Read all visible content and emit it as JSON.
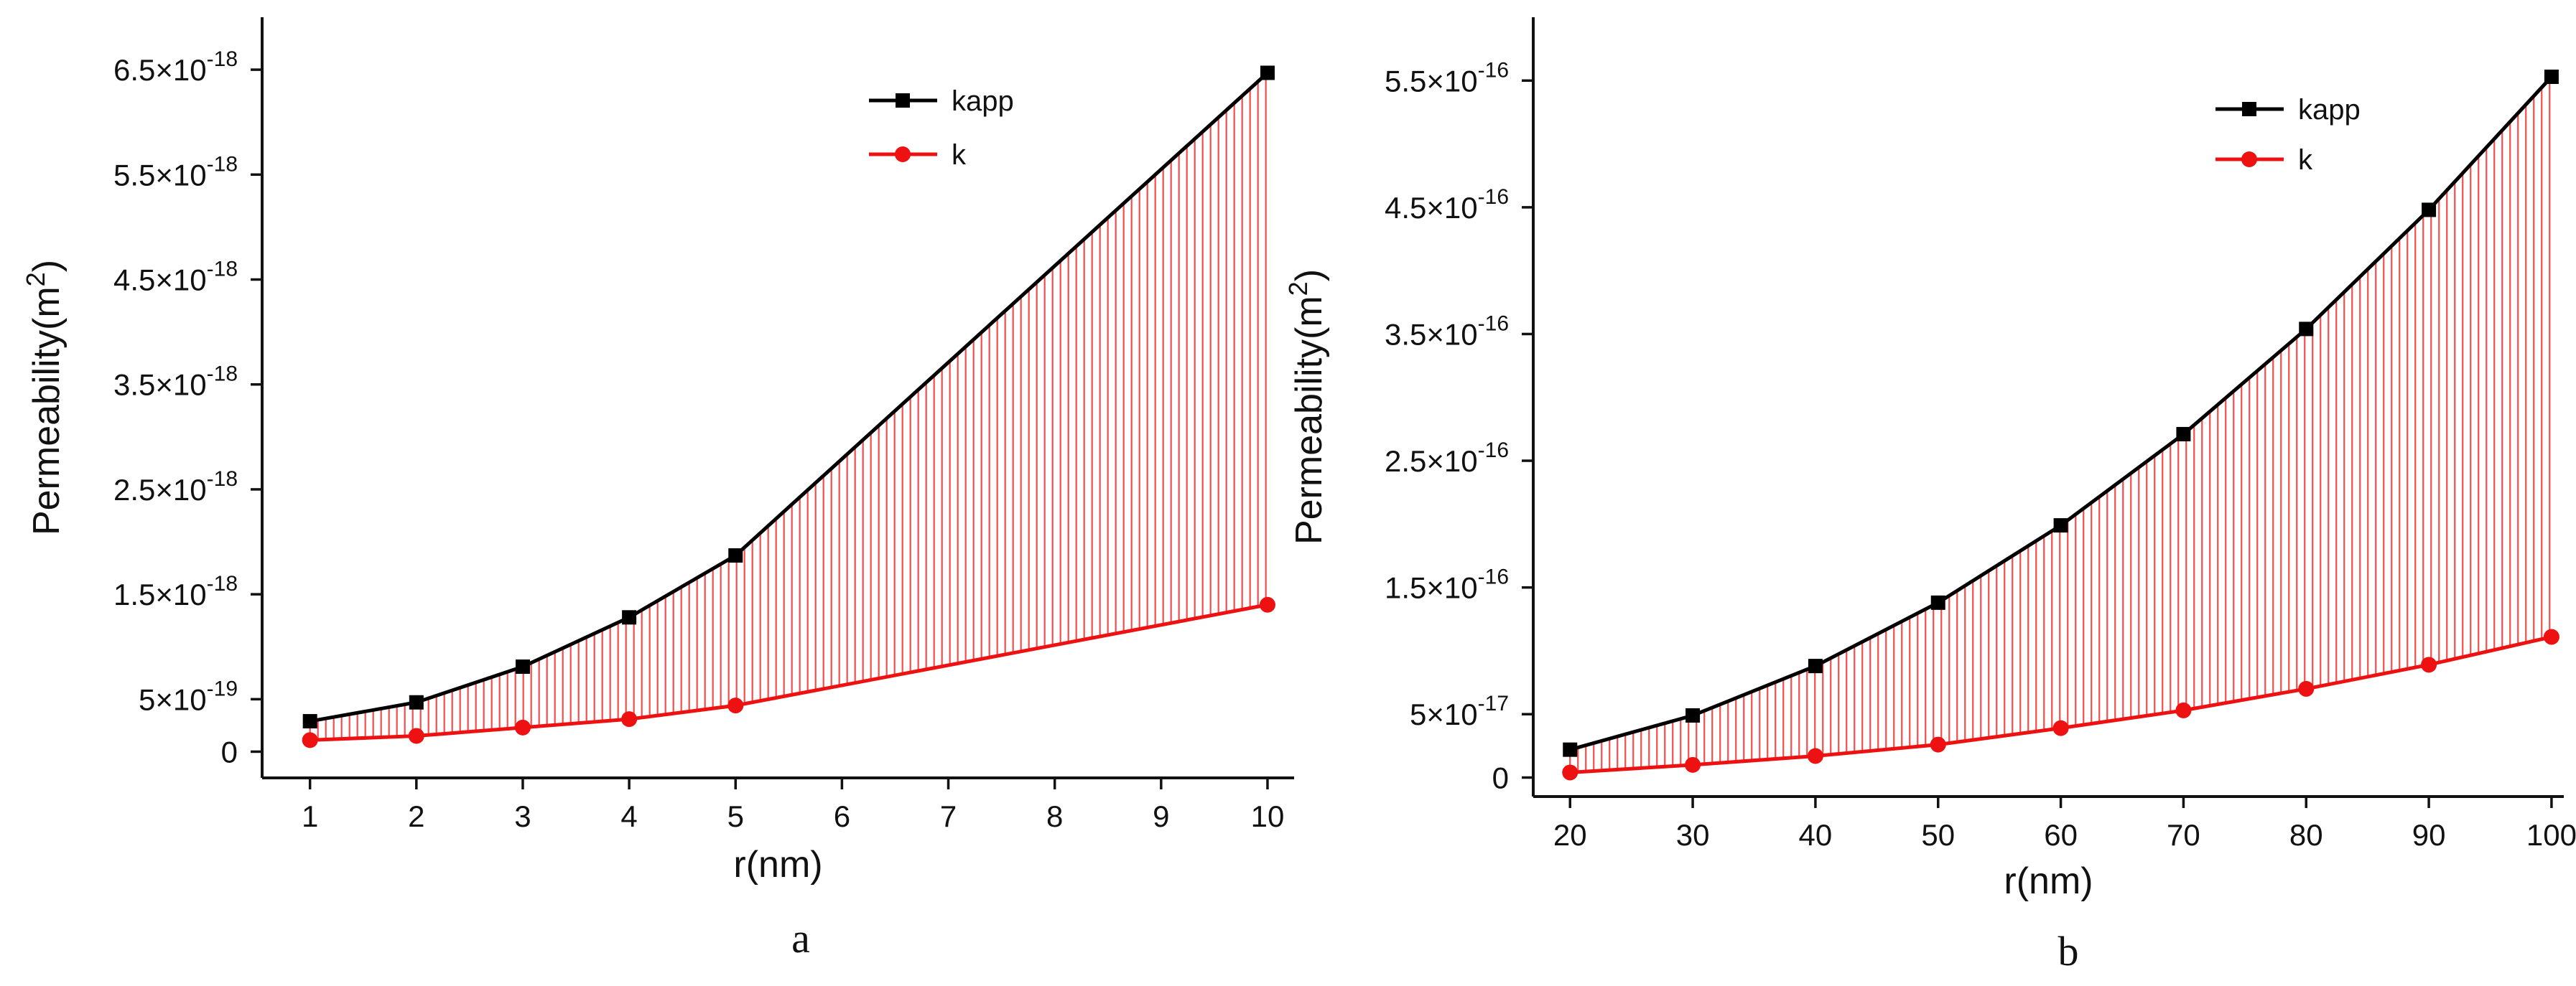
{
  "chart_data": [
    {
      "type": "line",
      "panel_label": "a",
      "xlabel": "r(nm)",
      "ylabel": "Permeability(m",
      "ylabel_sup": "2",
      "ylabel_close": ")",
      "x_positions": [
        1,
        2,
        3,
        4,
        5,
        6,
        7,
        8,
        9,
        10
      ],
      "x_tick_labels": [
        "1",
        "2",
        "3",
        "4",
        "5",
        "6",
        "7",
        "8",
        "9",
        "10"
      ],
      "xlim": [
        0.55,
        10.25
      ],
      "ylim": [
        -2.5e-19,
        7e-18
      ],
      "y_ticks": [
        {
          "value": 0,
          "mantissa": "0",
          "exp": ""
        },
        {
          "value": 5e-19,
          "mantissa": "5×10",
          "exp": "-19"
        },
        {
          "value": 1.5e-18,
          "mantissa": "1.5×10",
          "exp": "-18"
        },
        {
          "value": 2.5e-18,
          "mantissa": "2.5×10",
          "exp": "-18"
        },
        {
          "value": 3.5e-18,
          "mantissa": "3.5×10",
          "exp": "-18"
        },
        {
          "value": 4.5e-18,
          "mantissa": "4.5×10",
          "exp": "-18"
        },
        {
          "value": 5.5e-18,
          "mantissa": "5.5×10",
          "exp": "-18"
        },
        {
          "value": 6.5e-18,
          "mantissa": "6.5×10",
          "exp": "-18"
        }
      ],
      "series": [
        {
          "name": "kapp",
          "color": "#000000",
          "marker": "square",
          "x": [
            1,
            2,
            3,
            4,
            5,
            10
          ],
          "values": [
            2.9e-19,
            4.7e-19,
            8.1e-19,
            1.28e-18,
            1.87e-18,
            6.47e-18
          ]
        },
        {
          "name": "k",
          "color": "#ee1111",
          "marker": "circle",
          "x": [
            1,
            2,
            3,
            4,
            5,
            10
          ],
          "values": [
            1.1e-19,
            1.5e-19,
            2.3e-19,
            3.1e-19,
            4.4e-19,
            1.4e-18
          ]
        }
      ],
      "fill_between": {
        "color": "#ee1111",
        "style": "vertical-hatch"
      },
      "legend": "top-right",
      "grid": false
    },
    {
      "type": "line",
      "panel_label": "b",
      "xlabel": "r(nm)",
      "ylabel": "Permeability(m",
      "ylabel_sup": "2",
      "ylabel_close": ")",
      "x_positions": [
        20,
        30,
        40,
        50,
        60,
        70,
        80,
        90,
        100
      ],
      "x_tick_labels": [
        "20",
        "30",
        "40",
        "50",
        "60",
        "70",
        "80",
        "90",
        "100"
      ],
      "xlim": [
        17,
        101
      ],
      "ylim": [
        -1.5e-17,
        6e-16
      ],
      "y_ticks": [
        {
          "value": 0,
          "mantissa": "0",
          "exp": ""
        },
        {
          "value": 5e-17,
          "mantissa": "5×10",
          "exp": "-17"
        },
        {
          "value": 1.5e-16,
          "mantissa": "1.5×10",
          "exp": "-16"
        },
        {
          "value": 2.5e-16,
          "mantissa": "2.5×10",
          "exp": "-16"
        },
        {
          "value": 3.5e-16,
          "mantissa": "3.5×10",
          "exp": "-16"
        },
        {
          "value": 4.5e-16,
          "mantissa": "4.5×10",
          "exp": "-16"
        },
        {
          "value": 5.5e-16,
          "mantissa": "5.5×10",
          "exp": "-16"
        }
      ],
      "series": [
        {
          "name": "kapp",
          "color": "#000000",
          "marker": "square",
          "x": [
            20,
            30,
            40,
            50,
            60,
            70,
            80,
            90,
            100
          ],
          "values": [
            2.2e-17,
            4.9e-17,
            8.8e-17,
            1.38e-16,
            1.99e-16,
            2.71e-16,
            3.54e-16,
            4.48e-16,
            5.53e-16
          ]
        },
        {
          "name": "k",
          "color": "#ee1111",
          "marker": "circle",
          "x": [
            20,
            30,
            40,
            50,
            60,
            70,
            80,
            90,
            100
          ],
          "values": [
            4e-18,
            1e-17,
            1.7e-17,
            2.6e-17,
            3.9e-17,
            5.3e-17,
            7e-17,
            8.9e-17,
            1.11e-16
          ]
        }
      ],
      "fill_between": {
        "color": "#ee1111",
        "style": "vertical-hatch"
      },
      "legend": "top-right",
      "grid": false
    }
  ]
}
